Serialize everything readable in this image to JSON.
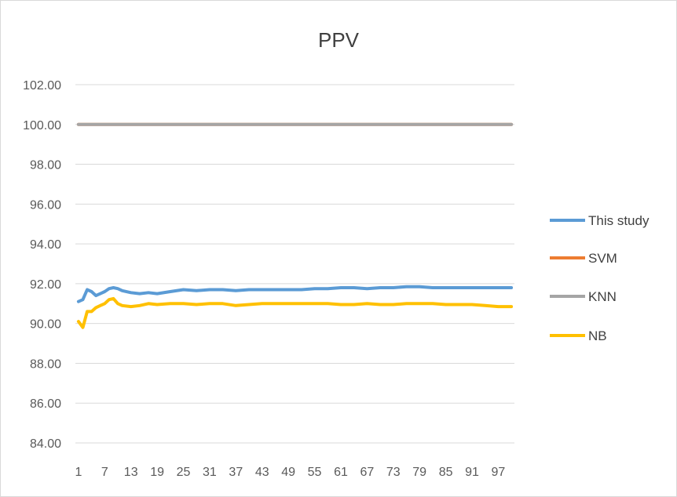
{
  "chart_data": {
    "type": "line",
    "title": "PPV",
    "xlabel": "",
    "ylabel": "",
    "ylim": [
      84,
      102
    ],
    "yticks": [
      "84.00",
      "86.00",
      "88.00",
      "90.00",
      "92.00",
      "94.00",
      "96.00",
      "98.00",
      "100.00",
      "102.00"
    ],
    "xticks": [
      "1",
      "7",
      "13",
      "19",
      "25",
      "31",
      "37",
      "43",
      "49",
      "55",
      "61",
      "67",
      "73",
      "79",
      "85",
      "91",
      "97"
    ],
    "x_count": 100,
    "grid": true,
    "legend_position": "right",
    "series": [
      {
        "name": "This study",
        "color": "#5b9bd5",
        "x": [
          1,
          2,
          3,
          4,
          5,
          6,
          7,
          8,
          9,
          10,
          11,
          13,
          15,
          17,
          19,
          22,
          25,
          28,
          31,
          34,
          37,
          40,
          43,
          46,
          49,
          52,
          55,
          58,
          61,
          64,
          67,
          70,
          73,
          76,
          79,
          82,
          85,
          88,
          91,
          94,
          97,
          100
        ],
        "values": [
          91.1,
          91.2,
          91.7,
          91.6,
          91.4,
          91.5,
          91.6,
          91.75,
          91.8,
          91.75,
          91.65,
          91.55,
          91.5,
          91.55,
          91.5,
          91.6,
          91.7,
          91.65,
          91.7,
          91.7,
          91.65,
          91.7,
          91.7,
          91.7,
          91.7,
          91.7,
          91.75,
          91.75,
          91.8,
          91.8,
          91.75,
          91.8,
          91.8,
          91.85,
          91.85,
          91.8,
          91.8,
          91.8,
          91.8,
          91.8,
          91.8,
          91.8
        ]
      },
      {
        "name": "SVM",
        "color": "#ed7d31",
        "x": [
          1,
          100
        ],
        "values": [
          100,
          100
        ]
      },
      {
        "name": "KNN",
        "color": "#a5a5a5",
        "x": [
          1,
          100
        ],
        "values": [
          100,
          100
        ]
      },
      {
        "name": "NB",
        "color": "#ffc000",
        "x": [
          1,
          2,
          3,
          4,
          5,
          6,
          7,
          8,
          9,
          10,
          11,
          13,
          15,
          17,
          19,
          22,
          25,
          28,
          31,
          34,
          37,
          40,
          43,
          46,
          49,
          52,
          55,
          58,
          61,
          64,
          67,
          70,
          73,
          76,
          79,
          82,
          85,
          88,
          91,
          94,
          97,
          100
        ],
        "values": [
          90.1,
          89.8,
          90.6,
          90.6,
          90.8,
          90.9,
          91.0,
          91.2,
          91.25,
          91.0,
          90.9,
          90.85,
          90.9,
          91.0,
          90.95,
          91.0,
          91.0,
          90.95,
          91.0,
          91.0,
          90.9,
          90.95,
          91.0,
          91.0,
          91.0,
          91.0,
          91.0,
          91.0,
          90.95,
          90.95,
          91.0,
          90.95,
          90.95,
          91.0,
          91.0,
          91.0,
          90.95,
          90.95,
          90.95,
          90.9,
          90.85,
          90.85
        ]
      }
    ]
  }
}
